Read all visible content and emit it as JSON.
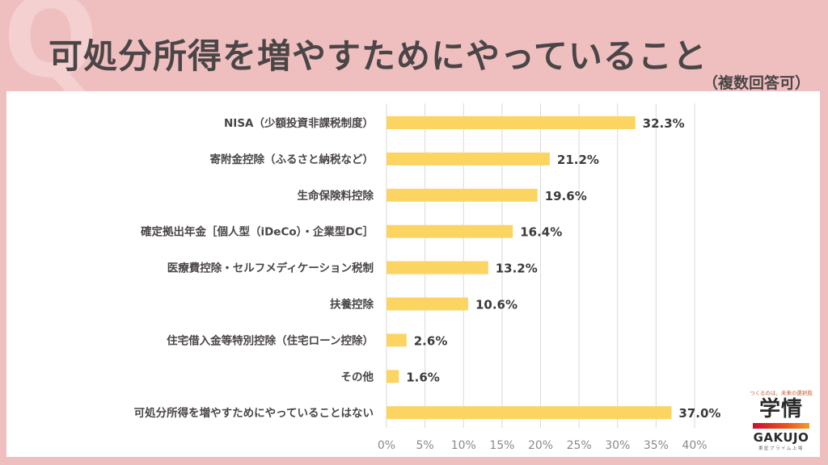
{
  "header": {
    "watermark": "Q",
    "title": "可処分所得を増やすためにやっていること",
    "subtitle": "（複数回答可）"
  },
  "logo": {
    "tagline": "つくるのは、未来の選択肢",
    "kanji": "学情",
    "brand": "GAKUJO",
    "listed": "東証プライム上場"
  },
  "colors": {
    "background": "#efbfc0",
    "bar": "#fcd462",
    "grid": "#d9d9d9",
    "text": "#4a4546"
  },
  "chart_data": {
    "type": "bar",
    "orientation": "horizontal",
    "title": "可処分所得を増やすためにやっていること",
    "subtitle": "（複数回答可）",
    "xlabel": "",
    "ylabel": "",
    "categories": [
      "NISA（少額投資非課税制度）",
      "寄附金控除（ふるさと納税など）",
      "生命保険料控除",
      "確定拠出年金［個人型（iDeCo）・企業型DC］",
      "医療費控除・セルフメディケーション税制",
      "扶養控除",
      "住宅借入金等特別控除（住宅ローン控除）",
      "その他",
      "可処分所得を増やすためにやっていることはない"
    ],
    "values": [
      32.3,
      21.2,
      19.6,
      16.4,
      13.2,
      10.6,
      2.6,
      1.6,
      37.0
    ],
    "value_labels": [
      "32.3%",
      "21.2%",
      "19.6%",
      "16.4%",
      "13.2%",
      "10.6%",
      "2.6%",
      "1.6%",
      "37.0%"
    ],
    "xlim": [
      0,
      40
    ],
    "xticks": [
      0,
      5,
      10,
      15,
      20,
      25,
      30,
      35,
      40
    ],
    "xtick_labels": [
      "0%",
      "5%",
      "10%",
      "15%",
      "20%",
      "25%",
      "30%",
      "35%",
      "40%"
    ],
    "grid": "vertical",
    "legend": "none"
  }
}
